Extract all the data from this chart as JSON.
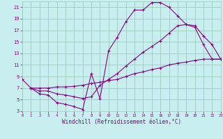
{
  "xlabel": "Windchill (Refroidissement éolien,°C)",
  "bg_color": "#c8eef0",
  "grid_color": "#99ccbb",
  "line_color": "#880088",
  "x_min": 0,
  "x_max": 23,
  "y_min": 3,
  "y_max": 22,
  "yticks": [
    3,
    5,
    7,
    9,
    11,
    13,
    15,
    17,
    19,
    21
  ],
  "xticks": [
    0,
    1,
    2,
    3,
    4,
    5,
    6,
    7,
    8,
    9,
    10,
    11,
    12,
    13,
    14,
    15,
    16,
    17,
    18,
    19,
    20,
    21,
    22,
    23
  ],
  "curve1_x": [
    0,
    1,
    2,
    3,
    4,
    5,
    6,
    7,
    8,
    9,
    10,
    11,
    12,
    13,
    14,
    15,
    16,
    17,
    18,
    19,
    20,
    21,
    22,
    23
  ],
  "curve1_y": [
    8.5,
    7.0,
    6.0,
    5.8,
    4.5,
    4.2,
    3.8,
    3.3,
    9.5,
    5.2,
    13.5,
    15.8,
    18.5,
    20.5,
    20.5,
    21.8,
    21.8,
    21.0,
    19.5,
    18.0,
    17.5,
    14.5,
    12.0,
    12.0
  ],
  "curve2_x": [
    1,
    2,
    3,
    4,
    5,
    6,
    7,
    8,
    9,
    10,
    11,
    12,
    13,
    14,
    15,
    16,
    17,
    18,
    19,
    20,
    21,
    22,
    23
  ],
  "curve2_y": [
    7.0,
    6.5,
    6.5,
    6.0,
    5.8,
    5.5,
    5.2,
    5.5,
    7.5,
    8.5,
    9.5,
    10.8,
    12.0,
    13.2,
    14.2,
    15.2,
    16.5,
    17.8,
    18.0,
    17.8,
    16.0,
    14.5,
    12.0
  ],
  "curve3_x": [
    1,
    2,
    3,
    4,
    5,
    6,
    7,
    8,
    9,
    10,
    11,
    12,
    13,
    14,
    15,
    16,
    17,
    18,
    19,
    20,
    21,
    22,
    23
  ],
  "curve3_y": [
    7.0,
    7.0,
    7.0,
    7.2,
    7.2,
    7.3,
    7.5,
    7.8,
    8.0,
    8.3,
    8.5,
    9.0,
    9.5,
    9.8,
    10.2,
    10.5,
    11.0,
    11.3,
    11.5,
    11.8,
    12.0,
    12.0,
    12.0
  ]
}
